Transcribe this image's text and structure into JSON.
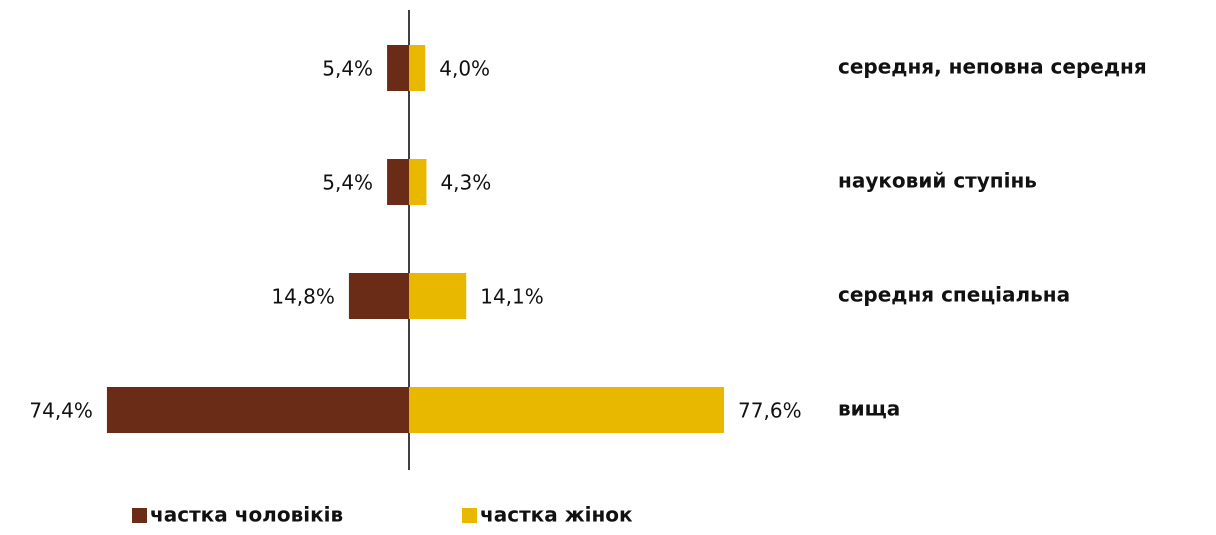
{
  "chart_data": {
    "type": "bar",
    "categories": [
      "середня, неповна середня",
      "науковий ступінь",
      "середня спеціальна",
      "вища"
    ],
    "series": [
      {
        "name": "частка чоловіків",
        "color": "#6b2c17",
        "values": [
          5.4,
          5.4,
          14.8,
          74.4
        ],
        "value_labels": [
          "5,4%",
          "5,4%",
          "14,8%",
          "74,4%"
        ]
      },
      {
        "name": "частка жінок",
        "color": "#e8b800",
        "values": [
          4.0,
          4.3,
          14.1,
          77.6
        ],
        "value_labels": [
          "4,0%",
          "4,3%",
          "14,1%",
          "77,6%"
        ]
      }
    ]
  }
}
